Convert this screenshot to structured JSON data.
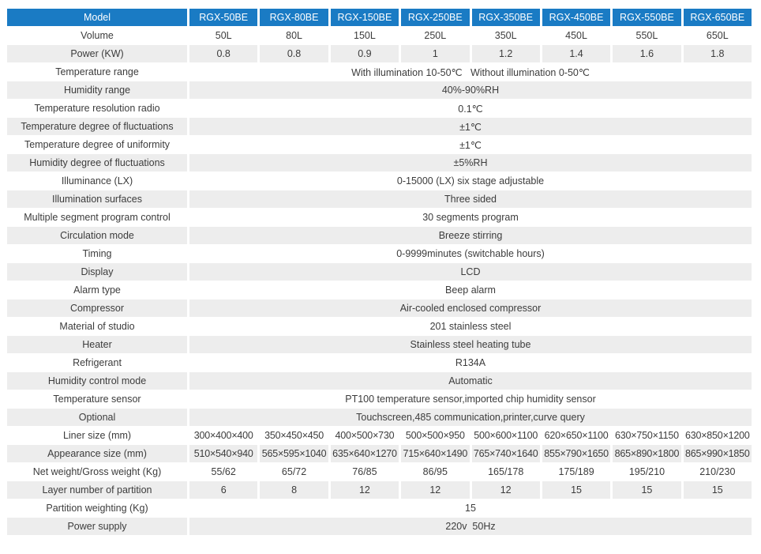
{
  "colors": {
    "header_bg": "#1a7bc4",
    "header_text": "#ffffff",
    "alt_row_bg": "#ededed",
    "body_text": "#3c3c3c",
    "page_bg": "#ffffff"
  },
  "chart_data": {
    "type": "table",
    "title": "RGX series specification table",
    "header": {
      "label": "Model",
      "models": [
        "RGX-50BE",
        "RGX-80BE",
        "RGX-150BE",
        "RGX-250BE",
        "RGX-350BE",
        "RGX-450BE",
        "RGX-550BE",
        "RGX-650BE"
      ]
    },
    "rows": [
      {
        "label": "Volume",
        "values": [
          "50L",
          "80L",
          "150L",
          "250L",
          "350L",
          "450L",
          "550L",
          "650L"
        ]
      },
      {
        "label": "Power (KW)",
        "values": [
          "0.8",
          "0.8",
          "0.9",
          "1",
          "1.2",
          "1.4",
          "1.6",
          "1.8"
        ]
      },
      {
        "label": "Temperature range",
        "value": "With illumination 10-50℃   Without illumination 0-50℃"
      },
      {
        "label": "Humidity range",
        "value": "40%-90%RH"
      },
      {
        "label": "Temperature resolution radio",
        "value": "0.1℃"
      },
      {
        "label": "Temperature degree of fluctuations",
        "value": "±1℃"
      },
      {
        "label": "Temperature degree of uniformity",
        "value": "±1℃"
      },
      {
        "label": "Humidity degree of fluctuations",
        "value": "±5%RH"
      },
      {
        "label": "Illuminance (LX)",
        "value": "0-15000 (LX) six stage adjustable"
      },
      {
        "label": "Illumination surfaces",
        "value": "Three sided"
      },
      {
        "label": "Multiple segment program control",
        "value": "30 segments program"
      },
      {
        "label": "Circulation mode",
        "value": "Breeze stirring"
      },
      {
        "label": "Timing",
        "value": "0-9999minutes (switchable hours)"
      },
      {
        "label": "Display",
        "value": "LCD"
      },
      {
        "label": "Alarm type",
        "value": "Beep alarm"
      },
      {
        "label": "Compressor",
        "value": "Air-cooled enclosed compressor"
      },
      {
        "label": "Material of studio",
        "value": "201 stainless steel"
      },
      {
        "label": "Heater",
        "value": "Stainless steel heating tube"
      },
      {
        "label": "Refrigerant",
        "value": "R134A"
      },
      {
        "label": "Humidity control mode",
        "value": "Automatic"
      },
      {
        "label": "Temperature sensor",
        "value": "PT100 temperature sensor,imported chip humidity sensor"
      },
      {
        "label": "Optional",
        "value": "Touchscreen,485 communication,printer,curve query"
      },
      {
        "label": "Liner size (mm)",
        "small": true,
        "values": [
          "300×400×400",
          "350×450×450",
          "400×500×730",
          "500×500×950",
          "500×600×1100",
          "620×650×1100",
          "630×750×1150",
          "630×850×1200"
        ]
      },
      {
        "label": "Appearance size (mm)",
        "small": true,
        "values": [
          "510×540×940",
          "565×595×1040",
          "635×640×1270",
          "715×640×1490",
          "765×740×1640",
          "855×790×1650",
          "865×890×1800",
          "865×990×1850"
        ]
      },
      {
        "label": "Net weight/Gross weight (Kg)",
        "values": [
          "55/62",
          "65/72",
          "76/85",
          "86/95",
          "165/178",
          "175/189",
          "195/210",
          "210/230"
        ]
      },
      {
        "label": "Layer number of partition",
        "values": [
          "6",
          "8",
          "12",
          "12",
          "12",
          "15",
          "15",
          "15"
        ]
      },
      {
        "label": "Partition weighting (Kg)",
        "value": "15"
      },
      {
        "label": "Power supply",
        "value": "220v  50Hz"
      }
    ]
  }
}
